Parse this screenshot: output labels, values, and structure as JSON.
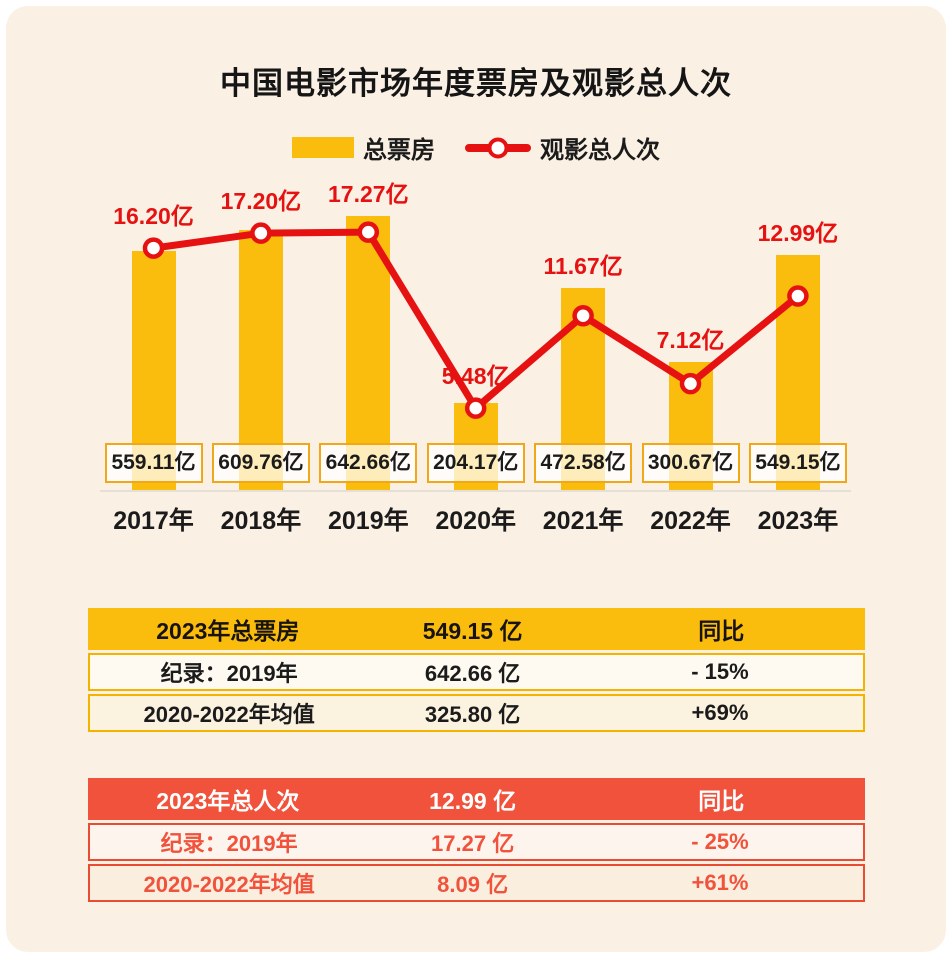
{
  "chart_data": {
    "type": "bar+line",
    "title": "中国电影市场年度票房及观影总人次",
    "categories": [
      "2017年",
      "2018年",
      "2019年",
      "2020年",
      "2021年",
      "2022年",
      "2023年"
    ],
    "series": [
      {
        "name": "总票房",
        "type": "bar",
        "unit": "亿",
        "color": "#FBBD0D",
        "values": [
          559.11,
          609.76,
          642.66,
          204.17,
          472.58,
          300.67,
          549.15
        ],
        "labels": [
          "559.11亿",
          "609.76亿",
          "642.66亿",
          "204.17亿",
          "472.58亿",
          "300.67亿",
          "549.15亿"
        ]
      },
      {
        "name": "观影总人次",
        "type": "line",
        "unit": "亿",
        "color": "#E61212",
        "values": [
          16.2,
          17.2,
          17.27,
          5.48,
          11.67,
          7.12,
          12.99
        ],
        "labels": [
          "16.20亿",
          "17.20亿",
          "17.27亿",
          "5.48亿",
          "11.67亿",
          "7.12亿",
          "12.99亿"
        ]
      }
    ],
    "legend_position": "top",
    "grid": false,
    "y_axis_visible": false
  },
  "tables": [
    {
      "theme": "yellow",
      "header": [
        "2023年总票房",
        "549.15 亿",
        "同比"
      ],
      "rows": [
        [
          "纪录：2019年",
          "642.66 亿",
          "- 15%"
        ],
        [
          "2020-2022年均值",
          "325.80 亿",
          "+69%"
        ]
      ]
    },
    {
      "theme": "red",
      "header": [
        "2023年总人次",
        "12.99 亿",
        "同比"
      ],
      "rows": [
        [
          "纪录：2019年",
          "17.27 亿",
          "- 25%"
        ],
        [
          "2020-2022年均值",
          "8.09 亿",
          "+61%"
        ]
      ]
    }
  ],
  "colors": {
    "background": "#FAF0E4",
    "bar_yellow": "#FBBD0D",
    "line_red": "#E61212",
    "table_red_header": "#F0523C",
    "value_box_border": "#F0A818"
  }
}
